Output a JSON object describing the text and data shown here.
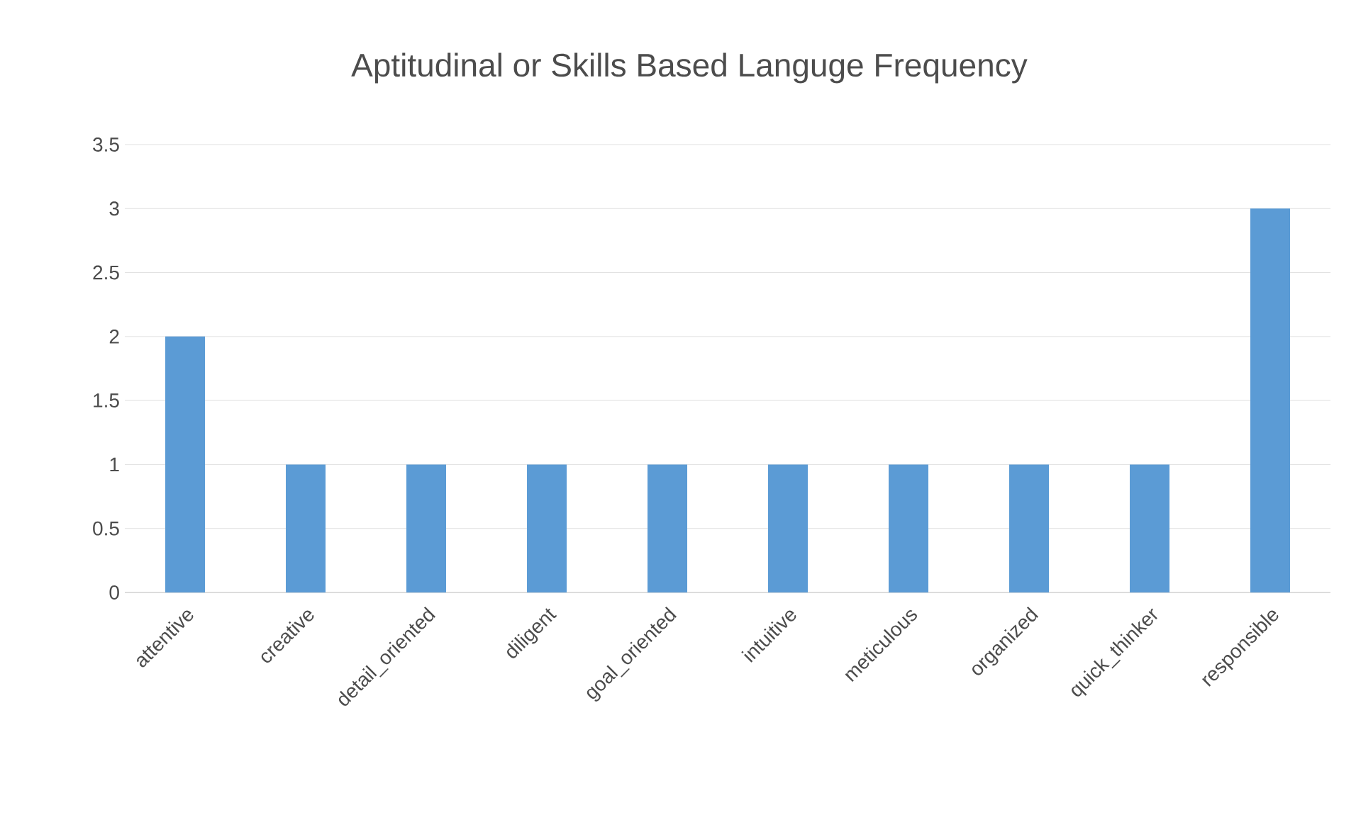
{
  "chart_data": {
    "type": "bar",
    "title": "Aptitudinal or Skills Based Languge Frequency",
    "categories": [
      "attentive",
      "creative",
      "detail_oriented",
      "diligent",
      "goal_oriented",
      "intuitive",
      "meticulous",
      "organized",
      "quick_thinker",
      "responsible"
    ],
    "values": [
      2,
      1,
      1,
      1,
      1,
      1,
      1,
      1,
      1,
      3
    ],
    "color": "#5b9bd5",
    "ylim": [
      0,
      3.5
    ],
    "yticks": [
      0,
      0.5,
      1,
      1.5,
      2,
      2.5,
      3,
      3.5
    ],
    "grid": "y"
  }
}
